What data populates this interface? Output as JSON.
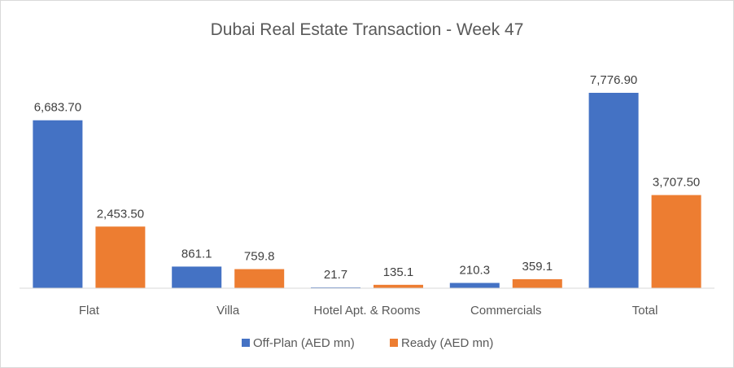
{
  "chart_data": {
    "type": "bar",
    "title": "Dubai Real Estate Transaction - Week 47",
    "xlabel": "",
    "ylabel": "",
    "categories": [
      "Flat",
      "Villa",
      "Hotel Apt. & Rooms",
      "Commercials",
      "Total"
    ],
    "series": [
      {
        "name": "Off-Plan (AED mn)",
        "color": "#4472c4",
        "values": [
          6683.7,
          861.1,
          21.7,
          210.3,
          7776.9
        ],
        "labels": [
          "6,683.70",
          "861.1",
          "21.7",
          "210.3",
          "7,776.90"
        ]
      },
      {
        "name": "Ready (AED mn)",
        "color": "#ed7d31",
        "values": [
          2453.5,
          759.8,
          135.1,
          359.1,
          3707.5
        ],
        "labels": [
          "2,453.50",
          "759.8",
          "135.1",
          "359.1",
          "3,707.50"
        ]
      }
    ],
    "ylim": [
      0,
      8000
    ],
    "grid": false,
    "legend_position": "bottom"
  }
}
